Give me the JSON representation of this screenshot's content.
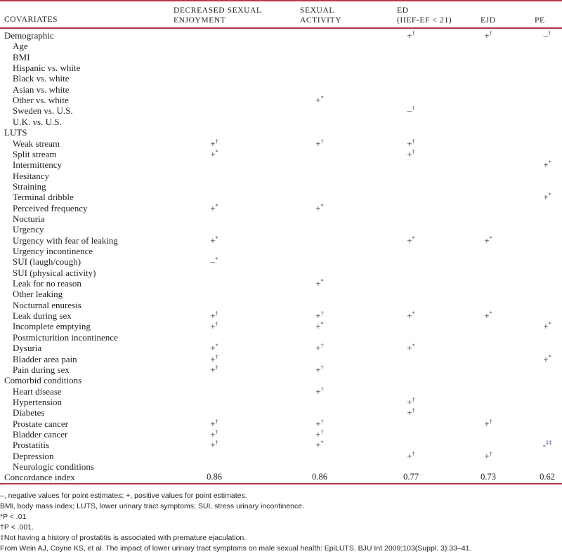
{
  "header": {
    "covariates": "COVARIATES",
    "col1_line1": "DECREASED SEXUAL",
    "col1_line2": "ENJOYMENT",
    "col2_line1": "SEXUAL",
    "col2_line2": "ACTIVITY",
    "col3_line1": "ED",
    "col3_line2": "(IIEF-EF < 21)",
    "col4": "EJD",
    "col5": "PE"
  },
  "rows": [
    {
      "label": "Demographic",
      "cat": true,
      "cells": [
        "",
        "",
        "+†",
        "+†",
        "–†"
      ]
    },
    {
      "label": "Age",
      "cells": [
        "",
        "",
        "",
        "",
        ""
      ]
    },
    {
      "label": "BMI",
      "cells": [
        "",
        "",
        "",
        "",
        ""
      ]
    },
    {
      "label": "Hispanic vs. white",
      "cells": [
        "",
        "",
        "",
        "",
        ""
      ]
    },
    {
      "label": "Black vs. white",
      "cells": [
        "",
        "",
        "",
        "",
        ""
      ]
    },
    {
      "label": "Asian vs. white",
      "cells": [
        "",
        "",
        "",
        "",
        ""
      ]
    },
    {
      "label": "Other vs. white",
      "cells": [
        "",
        "+*",
        "",
        "",
        ""
      ]
    },
    {
      "label": "Sweden vs. U.S.",
      "cells": [
        "",
        "",
        "–†",
        "",
        ""
      ]
    },
    {
      "label": "U.K. vs. U.S.",
      "cells": [
        "",
        "",
        "",
        "",
        ""
      ]
    },
    {
      "label": "LUTS",
      "cat": true,
      "cells": [
        "",
        "",
        "",
        "",
        ""
      ]
    },
    {
      "label": "Weak stream",
      "cells": [
        "+†",
        "+†",
        "+†",
        "",
        ""
      ]
    },
    {
      "label": "Split stream",
      "cells": [
        "+*",
        "",
        "+†",
        "",
        ""
      ]
    },
    {
      "label": "Intermittency",
      "cells": [
        "",
        "",
        "",
        "",
        "+*"
      ]
    },
    {
      "label": "Hesitancy",
      "cells": [
        "",
        "",
        "",
        "",
        ""
      ]
    },
    {
      "label": "Straining",
      "cells": [
        "",
        "",
        "",
        "",
        ""
      ]
    },
    {
      "label": "Terminal dribble",
      "cells": [
        "",
        "",
        "",
        "",
        "+*"
      ]
    },
    {
      "label": "Perceived frequency",
      "cells": [
        "+*",
        "+*",
        "",
        "",
        ""
      ]
    },
    {
      "label": "Nocturia",
      "cells": [
        "",
        "",
        "",
        "",
        ""
      ]
    },
    {
      "label": "Urgency",
      "cells": [
        "",
        "",
        "",
        "",
        ""
      ]
    },
    {
      "label": "Urgency with fear of leaking",
      "cells": [
        "+*",
        "",
        "+*",
        "+*",
        ""
      ]
    },
    {
      "label": "Urgency incontinence",
      "cells": [
        "",
        "",
        "",
        "",
        ""
      ]
    },
    {
      "label": "SUI (laugh/cough)",
      "cells": [
        "–*",
        "",
        "",
        "",
        ""
      ]
    },
    {
      "label": "SUI (physical activity)",
      "cells": [
        "",
        "",
        "",
        "",
        ""
      ]
    },
    {
      "label": "Leak for no reason",
      "cells": [
        "",
        "+*",
        "",
        "",
        ""
      ]
    },
    {
      "label": "Other leaking",
      "cells": [
        "",
        "",
        "",
        "",
        ""
      ]
    },
    {
      "label": "Nocturnal enuresis",
      "cells": [
        "",
        "",
        "",
        "",
        ""
      ]
    },
    {
      "label": "Leak during sex",
      "cells": [
        "+†",
        "+†",
        "+*",
        "+*",
        ""
      ]
    },
    {
      "label": "Incomplete emptying",
      "cells": [
        "+†",
        "+*",
        "",
        "",
        "+*"
      ]
    },
    {
      "label": "Postmicturition incontinence",
      "cells": [
        "",
        "",
        "",
        "",
        ""
      ]
    },
    {
      "label": "Dysuria",
      "cells": [
        "+*",
        "+†",
        "+*",
        "",
        ""
      ]
    },
    {
      "label": "Bladder area pain",
      "cells": [
        "+†",
        "",
        "",
        "",
        "+*"
      ]
    },
    {
      "label": "Pain during sex",
      "cells": [
        "+†",
        "+†",
        "",
        "",
        ""
      ]
    },
    {
      "label": "Comorbid conditions",
      "cat": true,
      "cells": [
        "",
        "",
        "",
        "",
        ""
      ]
    },
    {
      "label": "Heart disease",
      "cells": [
        "",
        "+†",
        "",
        "",
        ""
      ]
    },
    {
      "label": "Hypertension",
      "cells": [
        "",
        "",
        "+†",
        "",
        ""
      ]
    },
    {
      "label": "Diabetes",
      "cells": [
        "",
        "",
        "+†",
        "",
        ""
      ]
    },
    {
      "label": "Prostate cancer",
      "cells": [
        "+†",
        "+†",
        "",
        "+†",
        ""
      ]
    },
    {
      "label": "Bladder cancer",
      "cells": [
        "+†",
        "+†",
        "",
        "",
        ""
      ]
    },
    {
      "label": "Prostatitis",
      "cells": [
        "+†",
        "+*",
        "",
        "",
        "-‡‡"
      ]
    },
    {
      "label": "Depression",
      "cells": [
        "",
        "",
        "+†",
        "+†",
        ""
      ]
    },
    {
      "label": "Neurologic conditions",
      "cells": [
        "",
        "",
        "",
        "",
        ""
      ]
    },
    {
      "label": "Concordance index",
      "cat": true,
      "ci": true,
      "cells": [
        "0.86",
        "0.86",
        "0.77",
        "0.73",
        "0.62"
      ]
    }
  ],
  "notes": [
    "–, negative values for point estimates; +, positive values for point estimates.",
    "BMI, body mass index; LUTS, lower urinary tract symptoms; SUI, stress urinary incontinence.",
    "*P < .01",
    "†P < .001.",
    "‡Not having a history of prostatitis is associated with premature ejaculation.",
    "From Wein AJ, Coyne KS, et al. The impact of lower urinary tract symptoms on male sexual health: EpiLUTS. BJU Int 2009;103(Suppl. 3):33–41."
  ],
  "colors": {
    "rule": "#b43a4a",
    "marker": "#2d3a9a",
    "text": "#231f20"
  }
}
